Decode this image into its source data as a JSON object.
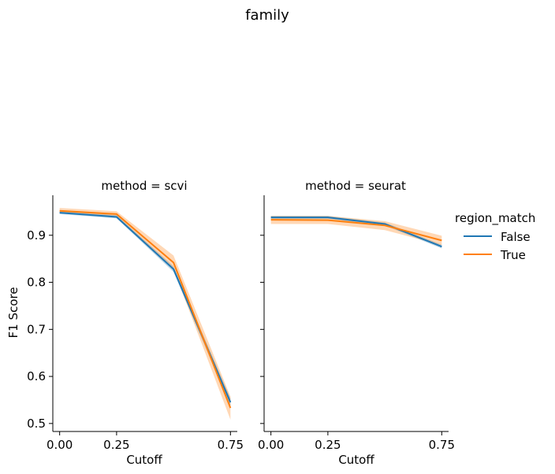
{
  "figure_title": "family",
  "chart_data": [
    {
      "type": "line",
      "title": "method = scvi",
      "xlabel": "Cutoff",
      "ylabel": "F1 Score",
      "x": [
        0.0,
        0.25,
        0.5,
        0.75
      ],
      "xticks": [
        "0.00",
        "0.25",
        "0.75"
      ],
      "xtick_values": [
        0.0,
        0.25,
        0.75
      ],
      "yticks": [
        "0.5",
        "0.6",
        "0.7",
        "0.8",
        "0.9"
      ],
      "ytick_values": [
        0.5,
        0.6,
        0.7,
        0.8,
        0.9
      ],
      "xlim": [
        -0.03,
        0.78
      ],
      "ylim": [
        0.483,
        0.985
      ],
      "grid": false,
      "series": [
        {
          "name": "False",
          "values": [
            0.948,
            0.939,
            0.828,
            0.545
          ],
          "ci_low": [
            0.945,
            0.936,
            0.822,
            0.536
          ],
          "ci_high": [
            0.952,
            0.943,
            0.834,
            0.554
          ]
        },
        {
          "name": "True",
          "values": [
            0.952,
            0.945,
            0.842,
            0.533
          ],
          "ci_low": [
            0.947,
            0.939,
            0.828,
            0.508
          ],
          "ci_high": [
            0.958,
            0.951,
            0.857,
            0.557
          ]
        }
      ]
    },
    {
      "type": "line",
      "title": "method = seurat",
      "xlabel": "Cutoff",
      "ylabel": "",
      "x": [
        0.0,
        0.25,
        0.5,
        0.75
      ],
      "xticks": [
        "0.00",
        "0.25",
        "0.75"
      ],
      "xtick_values": [
        0.0,
        0.25,
        0.75
      ],
      "yticks": [],
      "ytick_values": [
        0.5,
        0.6,
        0.7,
        0.8,
        0.9
      ],
      "xlim": [
        -0.03,
        0.78
      ],
      "ylim": [
        0.483,
        0.985
      ],
      "grid": false,
      "series": [
        {
          "name": "False",
          "values": [
            0.938,
            0.938,
            0.924,
            0.876
          ],
          "ci_low": [
            0.935,
            0.935,
            0.921,
            0.872
          ],
          "ci_high": [
            0.941,
            0.941,
            0.927,
            0.88
          ]
        },
        {
          "name": "True",
          "values": [
            0.933,
            0.932,
            0.921,
            0.889
          ],
          "ci_low": [
            0.924,
            0.924,
            0.911,
            0.879
          ],
          "ci_high": [
            0.941,
            0.941,
            0.93,
            0.899
          ]
        }
      ]
    }
  ],
  "legend": {
    "title": "region_match",
    "placement": "right",
    "entries": [
      {
        "label": "False",
        "color": "#1f77b4"
      },
      {
        "label": "True",
        "color": "#ff7f0e"
      }
    ]
  },
  "colors": {
    "False": "#1f77b4",
    "True": "#ff7f0e"
  }
}
